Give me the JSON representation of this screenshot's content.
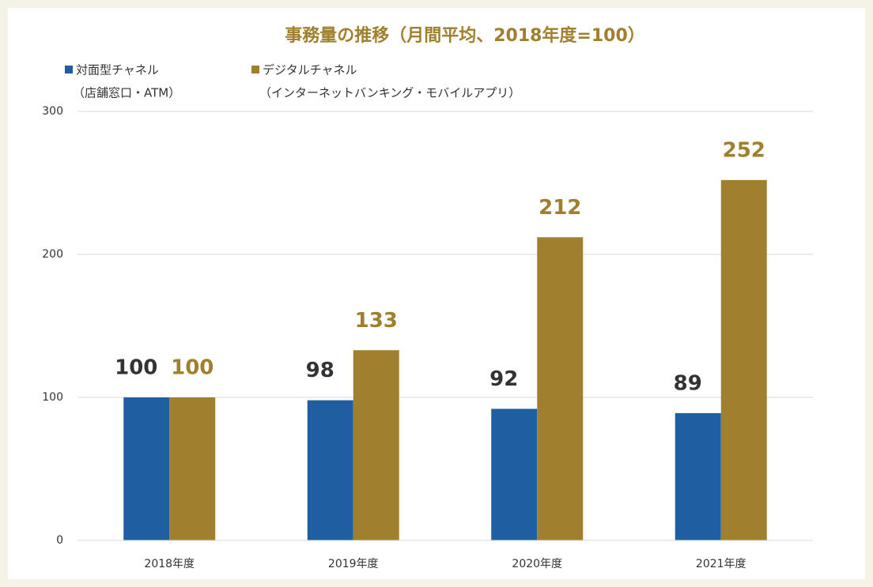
{
  "chart_data": {
    "type": "bar",
    "title": "事務量の推移（月間平均、2018年度=100）",
    "categories": [
      "2018年度",
      "2019年度",
      "2020年度",
      "2021年度"
    ],
    "series": [
      {
        "name": "対面型チャネル",
        "note": "（店舗窓口・ATM）",
        "color": "#1f5fa1",
        "label_color": "#333333",
        "values": [
          100,
          98,
          92,
          89
        ]
      },
      {
        "name": "デジタルチャネル",
        "note": "（インターネットバンキング・モバイルアプリ）",
        "color": "#a0802e",
        "label_color": "#a0802e",
        "values": [
          100,
          133,
          212,
          252
        ]
      }
    ],
    "ylim": [
      0,
      300
    ],
    "yticks": [
      0,
      100,
      200,
      300
    ],
    "grid": true
  }
}
